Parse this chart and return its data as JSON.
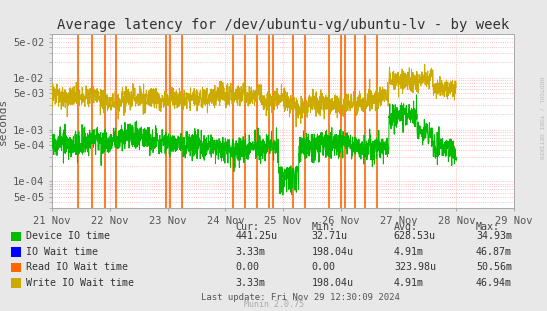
{
  "title": "Average latency for /dev/ubuntu-vg/ubuntu-lv - by week",
  "ylabel": "seconds",
  "background_color": "#e8e8e8",
  "plot_bg_color": "#ffffff",
  "grid_color": "#ffaaaa",
  "ymin": 3e-05,
  "ymax": 0.07,
  "xmin": 0,
  "xmax": 2016,
  "xtick_labels": [
    "21 Nov",
    "22 Nov",
    "23 Nov",
    "24 Nov",
    "25 Nov",
    "26 Nov",
    "27 Nov",
    "28 Nov",
    "29 Nov"
  ],
  "xtick_positions": [
    0,
    288,
    576,
    864,
    1152,
    1440,
    1728,
    2016,
    2304
  ],
  "title_fontsize": 10,
  "axis_fontsize": 8,
  "tick_fontsize": 7.5,
  "legend_entries": [
    {
      "label": "Device IO time",
      "color": "#00bb00"
    },
    {
      "label": "IO Wait time",
      "color": "#0000ff"
    },
    {
      "label": "Read IO Wait time",
      "color": "#ff6600"
    },
    {
      "label": "Write IO Wait time",
      "color": "#ccaa00"
    }
  ],
  "legend_stats": [
    {
      "cur": "441.25u",
      "min": "32.71u",
      "avg": "628.53u",
      "max": "34.93m"
    },
    {
      "cur": "3.33m",
      "min": "198.04u",
      "avg": "4.91m",
      "max": "46.87m"
    },
    {
      "cur": "0.00",
      "min": "0.00",
      "avg": "323.98u",
      "max": "50.56m"
    },
    {
      "cur": "3.33m",
      "min": "198.04u",
      "avg": "4.91m",
      "max": "46.94m"
    }
  ],
  "last_update": "Last update: Fri Nov 29 12:30:09 2024",
  "munin_version": "Munin 2.0.75",
  "watermark": "RRDTOOL / TOBI OETIKER",
  "orange_spikes": [
    130,
    200,
    265,
    320,
    570,
    590,
    650,
    900,
    960,
    1020,
    1080,
    1100,
    1200,
    1260,
    1380,
    1440,
    1460,
    1510,
    1560,
    1620
  ]
}
